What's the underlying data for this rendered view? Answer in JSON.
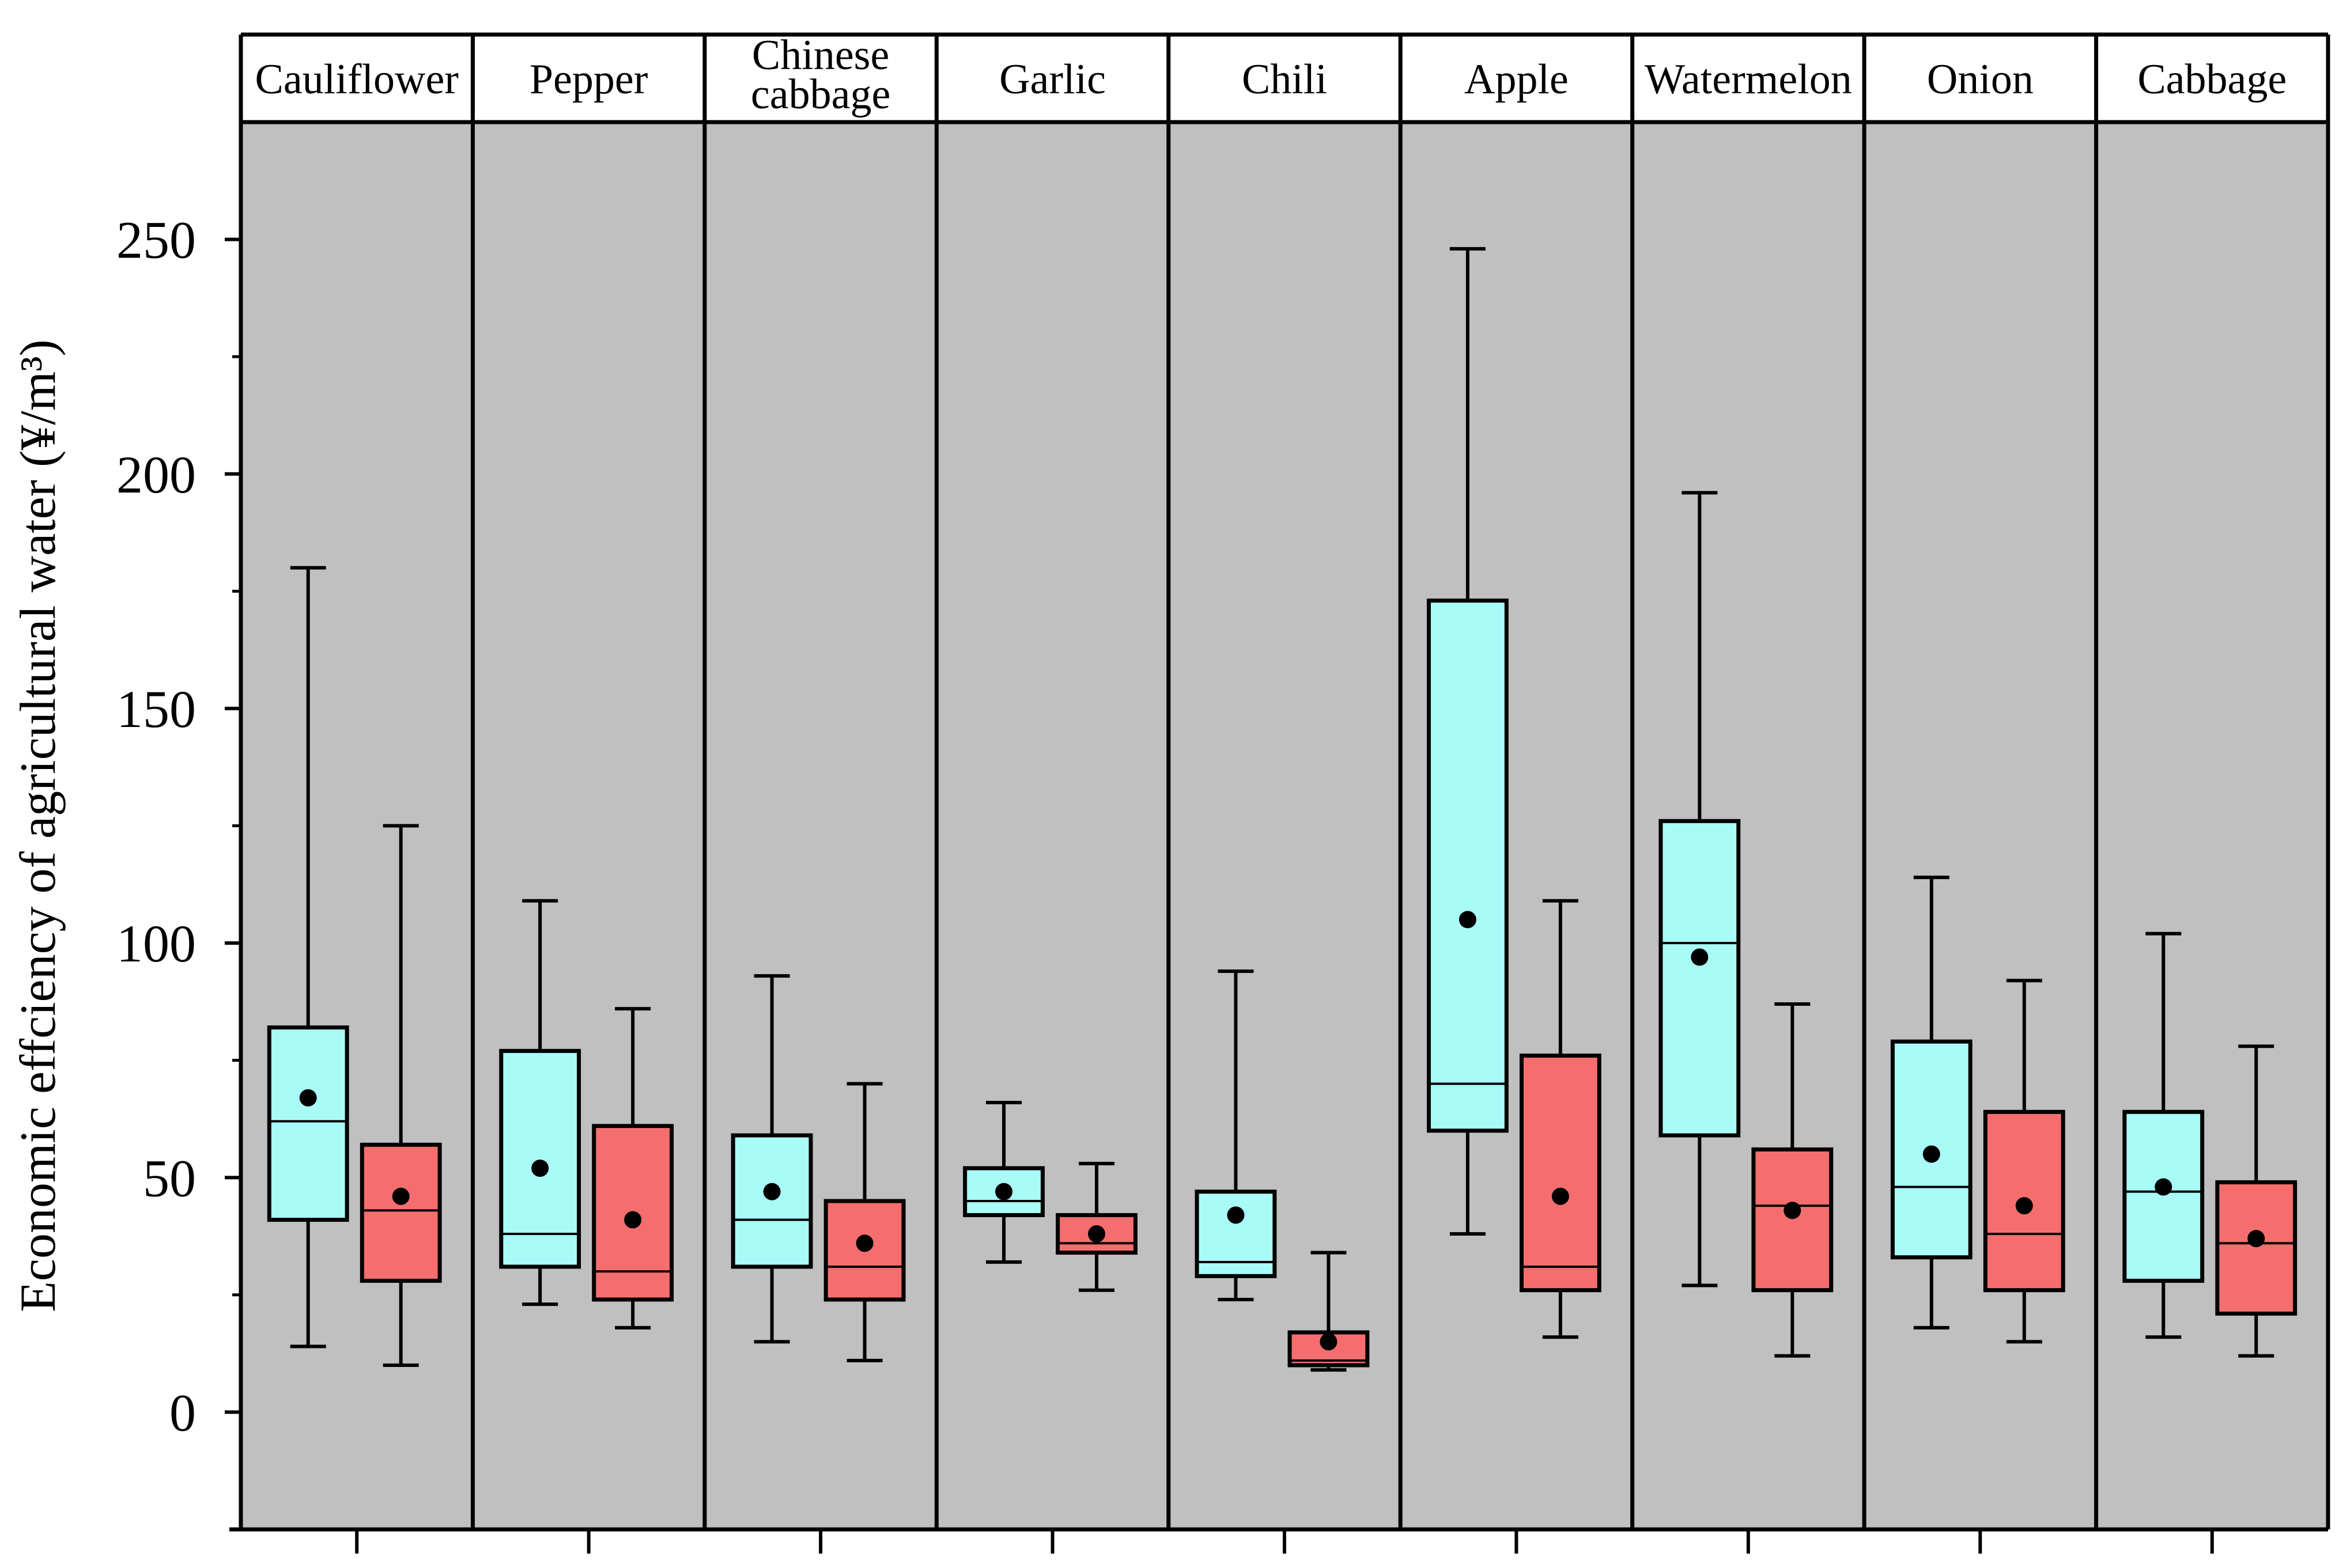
{
  "chart_data": {
    "type": "boxplot",
    "ylabel": "Economic effciency of agricultural water (¥/m³)",
    "ylim": [
      -25,
      275
    ],
    "yticks": [
      0,
      50,
      100,
      150,
      200,
      250
    ],
    "yminor_ticks": [
      25,
      75,
      125,
      175,
      225
    ],
    "series_colors": [
      "#a9fbf8",
      "#f56e6e"
    ],
    "panel_background": "#c0c0c0",
    "categories": [
      {
        "label": "Cauliflower",
        "lines": [
          "Cauliflower"
        ],
        "boxes": [
          {
            "min": 14,
            "q1": 41,
            "median": 62,
            "q3": 82,
            "max": 180,
            "mean": 67
          },
          {
            "min": 10,
            "q1": 28,
            "median": 43,
            "q3": 57,
            "max": 125,
            "mean": 46
          }
        ]
      },
      {
        "label": "Pepper",
        "lines": [
          "Pepper"
        ],
        "boxes": [
          {
            "min": 23,
            "q1": 31,
            "median": 38,
            "q3": 77,
            "max": 109,
            "mean": 52
          },
          {
            "min": 18,
            "q1": 24,
            "median": 30,
            "q3": 61,
            "max": 86,
            "mean": 41
          }
        ]
      },
      {
        "label": "Chinese cabbage",
        "lines": [
          "Chinese",
          "cabbage"
        ],
        "boxes": [
          {
            "min": 15,
            "q1": 31,
            "median": 41,
            "q3": 59,
            "max": 93,
            "mean": 47
          },
          {
            "min": 11,
            "q1": 24,
            "median": 31,
            "q3": 45,
            "max": 70,
            "mean": 36
          }
        ]
      },
      {
        "label": "Garlic",
        "lines": [
          "Garlic"
        ],
        "boxes": [
          {
            "min": 32,
            "q1": 42,
            "median": 45,
            "q3": 52,
            "max": 66,
            "mean": 47
          },
          {
            "min": 26,
            "q1": 34,
            "median": 36,
            "q3": 42,
            "max": 53,
            "mean": 38
          }
        ]
      },
      {
        "label": "Chili",
        "lines": [
          "Chili"
        ],
        "boxes": [
          {
            "min": 24,
            "q1": 29,
            "median": 32,
            "q3": 47,
            "max": 94,
            "mean": 42
          },
          {
            "min": 9,
            "q1": 10,
            "median": 11,
            "q3": 17,
            "max": 34,
            "mean": 15
          }
        ]
      },
      {
        "label": "Apple",
        "lines": [
          "Apple"
        ],
        "boxes": [
          {
            "min": 38,
            "q1": 60,
            "median": 70,
            "q3": 173,
            "max": 248,
            "mean": 105
          },
          {
            "min": 16,
            "q1": 26,
            "median": 31,
            "q3": 76,
            "max": 109,
            "mean": 46
          }
        ]
      },
      {
        "label": "Watermelon",
        "lines": [
          "Watermelon"
        ],
        "boxes": [
          {
            "min": 27,
            "q1": 59,
            "median": 100,
            "q3": 126,
            "max": 196,
            "mean": 97
          },
          {
            "min": 12,
            "q1": 26,
            "median": 44,
            "q3": 56,
            "max": 87,
            "mean": 43
          }
        ]
      },
      {
        "label": "Onion",
        "lines": [
          "Onion"
        ],
        "boxes": [
          {
            "min": 18,
            "q1": 33,
            "median": 48,
            "q3": 79,
            "max": 114,
            "mean": 55
          },
          {
            "min": 15,
            "q1": 26,
            "median": 38,
            "q3": 64,
            "max": 92,
            "mean": 44
          }
        ]
      },
      {
        "label": "Cabbage",
        "lines": [
          "Cabbage"
        ],
        "boxes": [
          {
            "min": 16,
            "q1": 28,
            "median": 47,
            "q3": 64,
            "max": 102,
            "mean": 48
          },
          {
            "min": 12,
            "q1": 21,
            "median": 36,
            "q3": 49,
            "max": 78,
            "mean": 37
          }
        ]
      }
    ]
  }
}
